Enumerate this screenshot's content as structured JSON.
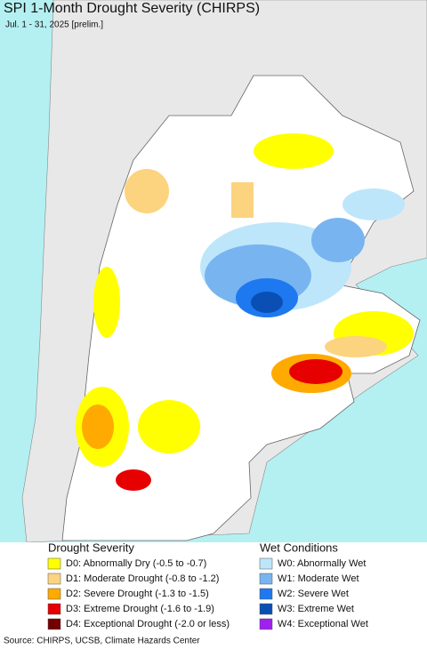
{
  "header": {
    "title": "SPI 1-Month Drought Severity (CHIRPS)",
    "subtitle": "Jul. 1 - 31, 2025 [prelim.]"
  },
  "legend": {
    "drought": {
      "title": "Drought Severity",
      "items": [
        {
          "label": "D0: Abnormally Dry (-0.5 to -0.7)",
          "color": "#ffff00"
        },
        {
          "label": "D1: Moderate Drought (-0.8 to -1.2)",
          "color": "#fcd37f"
        },
        {
          "label": "D2: Severe Drought (-1.3 to -1.5)",
          "color": "#ffaa00"
        },
        {
          "label": "D3: Extreme Drought (-1.6 to -1.9)",
          "color": "#e60000"
        },
        {
          "label": "D4: Exceptional Drought (-2.0 or less)",
          "color": "#730000"
        }
      ]
    },
    "wet": {
      "title": "Wet Conditions",
      "items": [
        {
          "label": "W0: Abnormally Wet",
          "color": "#bde6fb"
        },
        {
          "label": "W1: Moderate Wet",
          "color": "#78b4f0"
        },
        {
          "label": "W2: Severe Wet",
          "color": "#1e78f0"
        },
        {
          "label": "W3: Extreme Wet",
          "color": "#0a4fb4"
        },
        {
          "label": "W4: Exceptional Wet",
          "color": "#a020f0"
        }
      ]
    }
  },
  "footer": {
    "source": "Source: CHIRPS, UCSB, Climate Hazards Center"
  }
}
